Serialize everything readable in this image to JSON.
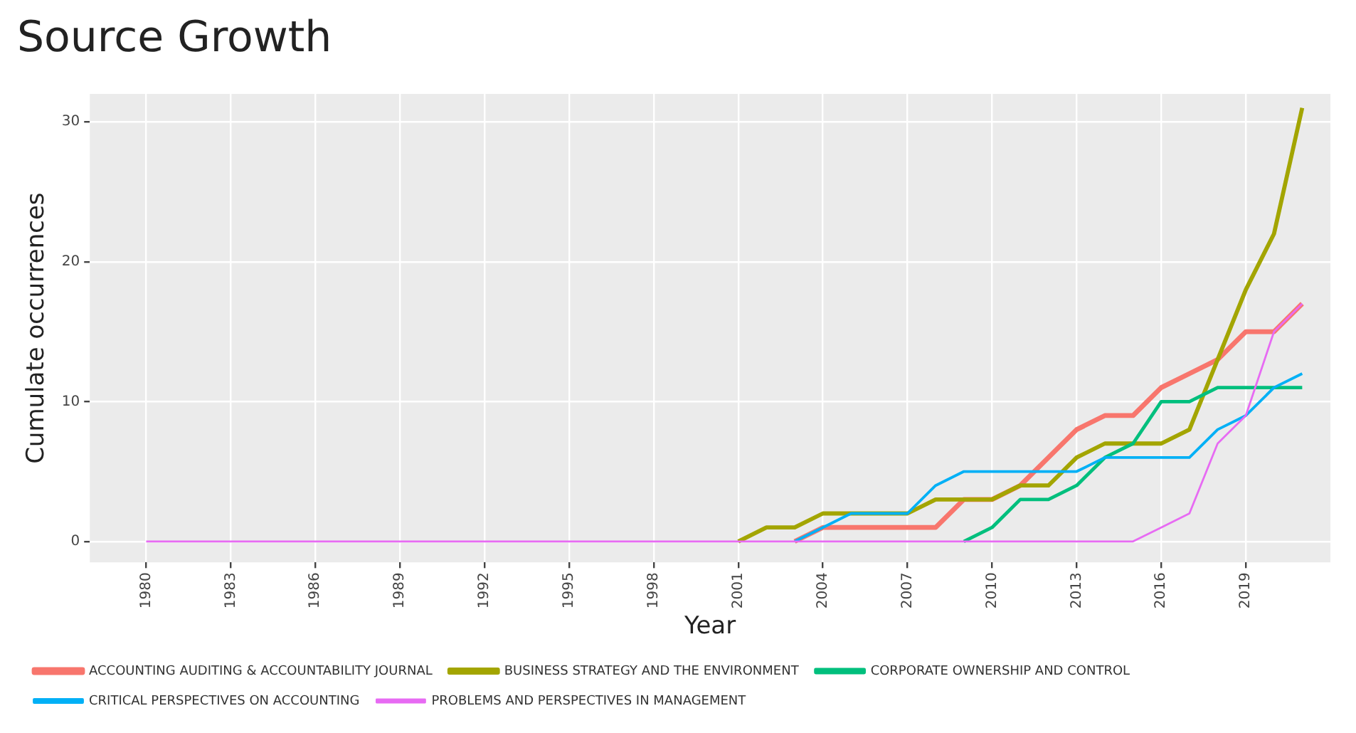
{
  "chart_data": {
    "type": "line",
    "title": "Source Growth",
    "xlabel": "Year",
    "ylabel": "Cumulate occurrences",
    "x": [
      1980,
      1981,
      1982,
      1983,
      1984,
      1985,
      1986,
      1987,
      1988,
      1989,
      1990,
      1991,
      1992,
      1993,
      1994,
      1995,
      1996,
      1997,
      1998,
      1999,
      2000,
      2001,
      2002,
      2003,
      2004,
      2005,
      2006,
      2007,
      2008,
      2009,
      2010,
      2011,
      2012,
      2013,
      2014,
      2015,
      2016,
      2017,
      2018,
      2019,
      2020,
      2021
    ],
    "series": [
      {
        "name": "ACCOUNTING AUDITING & ACCOUNTABILITY JOURNAL",
        "color": "#f8766d",
        "values": [
          null,
          null,
          null,
          null,
          null,
          null,
          null,
          null,
          null,
          null,
          null,
          null,
          null,
          null,
          null,
          null,
          null,
          null,
          null,
          null,
          null,
          null,
          null,
          0,
          1,
          1,
          1,
          1,
          1,
          3,
          3,
          4,
          6,
          8,
          9,
          9,
          11,
          12,
          13,
          15,
          15,
          17
        ]
      },
      {
        "name": "BUSINESS STRATEGY AND THE ENVIRONMENT",
        "color": "#a3a500",
        "values": [
          null,
          null,
          null,
          null,
          null,
          null,
          null,
          null,
          null,
          null,
          null,
          null,
          null,
          null,
          null,
          null,
          null,
          null,
          null,
          null,
          null,
          0,
          1,
          1,
          2,
          2,
          2,
          2,
          3,
          3,
          3,
          4,
          4,
          6,
          7,
          7,
          7,
          8,
          13,
          18,
          22,
          31
        ]
      },
      {
        "name": "CORPORATE OWNERSHIP AND CONTROL",
        "color": "#00bf7d",
        "values": [
          null,
          null,
          null,
          null,
          null,
          null,
          null,
          null,
          null,
          null,
          null,
          null,
          null,
          null,
          null,
          null,
          null,
          null,
          null,
          null,
          null,
          null,
          null,
          null,
          null,
          null,
          null,
          null,
          null,
          0,
          1,
          3,
          3,
          4,
          6,
          7,
          10,
          10,
          11,
          11,
          11,
          11
        ]
      },
      {
        "name": "CRITICAL PERSPECTIVES ON ACCOUNTING",
        "color": "#00b0f6",
        "values": [
          null,
          null,
          null,
          null,
          null,
          null,
          null,
          null,
          null,
          null,
          null,
          null,
          null,
          null,
          null,
          null,
          null,
          null,
          null,
          null,
          null,
          null,
          null,
          0,
          1,
          2,
          2,
          2,
          4,
          5,
          5,
          5,
          5,
          5,
          6,
          6,
          6,
          6,
          8,
          9,
          11,
          12
        ]
      },
      {
        "name": "PROBLEMS AND PERSPECTIVES IN MANAGEMENT",
        "color": "#e76bf3",
        "values": [
          0,
          0,
          0,
          0,
          0,
          0,
          0,
          0,
          0,
          0,
          0,
          0,
          0,
          0,
          0,
          0,
          0,
          0,
          0,
          0,
          0,
          0,
          0,
          0,
          0,
          0,
          0,
          0,
          0,
          0,
          0,
          0,
          0,
          0,
          0,
          0,
          1,
          2,
          7,
          9,
          15,
          17
        ]
      }
    ],
    "xlim": [
      1978,
      2022
    ],
    "xticks": [
      1980,
      1983,
      1986,
      1989,
      1992,
      1995,
      1998,
      2001,
      2004,
      2007,
      2010,
      2013,
      2016,
      2019
    ],
    "ylim": [
      -1.5,
      32
    ],
    "yticks": [
      0,
      10,
      20,
      30
    ],
    "grid": true,
    "legend": "bottom",
    "marker": "none",
    "line_style": "solid"
  }
}
